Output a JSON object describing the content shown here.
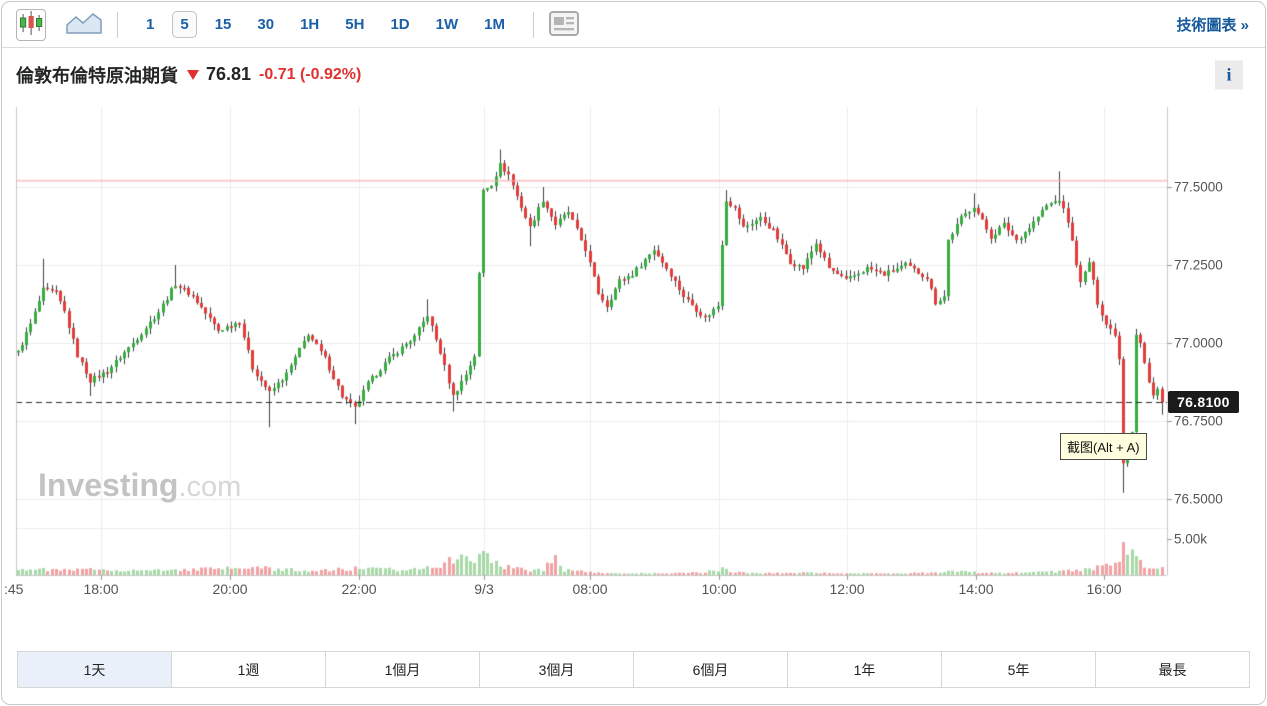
{
  "toolbar": {
    "chart_types": [
      {
        "name": "candlestick",
        "selected": true
      },
      {
        "name": "area",
        "selected": false
      }
    ],
    "intervals": [
      {
        "label": "1",
        "selected": false
      },
      {
        "label": "5",
        "selected": true
      },
      {
        "label": "15",
        "selected": false
      },
      {
        "label": "30",
        "selected": false
      },
      {
        "label": "1H",
        "selected": false
      },
      {
        "label": "5H",
        "selected": false
      },
      {
        "label": "1D",
        "selected": false
      },
      {
        "label": "1W",
        "selected": false
      },
      {
        "label": "1M",
        "selected": false
      }
    ],
    "technical_link": "技術圖表 »"
  },
  "header": {
    "title": "倫敦布倫特原油期貨",
    "price": "76.81",
    "change": "-0.71 (-0.92%)",
    "direction": "down",
    "info_label": "i"
  },
  "chart": {
    "y_axis_labels": [
      "77.5000",
      "77.2500",
      "77.0000",
      "76.7500",
      "76.5000"
    ],
    "volume_axis_label": "5.00k",
    "last_price_label": "76.8100",
    "x_axis_labels": [
      ":45",
      "18:00",
      "20:00",
      "22:00",
      "9/3",
      "08:00",
      "10:00",
      "12:00",
      "14:00",
      "16:00"
    ],
    "watermark_bold": "Investing",
    "watermark_light": ".com",
    "tooltip": "截图(Alt + A)"
  },
  "periods": [
    {
      "label": "1天",
      "selected": true
    },
    {
      "label": "1週",
      "selected": false
    },
    {
      "label": "1個月",
      "selected": false
    },
    {
      "label": "3個月",
      "selected": false
    },
    {
      "label": "6個月",
      "selected": false
    },
    {
      "label": "1年",
      "selected": false
    },
    {
      "label": "5年",
      "selected": false
    },
    {
      "label": "最長",
      "selected": false
    }
  ],
  "chart_data": {
    "type": "candlestick",
    "instrument": "倫敦布倫特原油期貨",
    "timeframe_minutes": 5,
    "last_price": 76.81,
    "change": -0.71,
    "change_pct": -0.92,
    "prev_close_line": 77.52,
    "ylim": [
      76.38,
      77.68
    ],
    "y_ticks": [
      77.5,
      77.25,
      77.0,
      76.75,
      76.5
    ],
    "x_tick_labels": [
      ":45",
      "18:00",
      "20:00",
      "22:00",
      "9/3",
      "08:00",
      "10:00",
      "12:00",
      "14:00",
      "16:00"
    ],
    "volume_tick": 5000,
    "num_candles": 269,
    "price_path": [
      [
        0,
        76.97
      ],
      [
        3,
        77.06
      ],
      [
        6,
        77.17
      ],
      [
        9,
        77.16
      ],
      [
        11,
        77.1
      ],
      [
        14,
        76.96
      ],
      [
        17,
        76.88
      ],
      [
        21,
        76.91
      ],
      [
        27,
        77.0
      ],
      [
        33,
        77.1
      ],
      [
        37,
        77.19
      ],
      [
        41,
        77.15
      ],
      [
        47,
        77.04
      ],
      [
        52,
        77.07
      ],
      [
        55,
        76.92
      ],
      [
        59,
        76.84
      ],
      [
        63,
        76.9
      ],
      [
        68,
        77.03
      ],
      [
        72,
        76.95
      ],
      [
        76,
        76.83
      ],
      [
        79,
        76.79
      ],
      [
        82,
        76.87
      ],
      [
        87,
        76.95
      ],
      [
        93,
        77.02
      ],
      [
        96,
        77.09
      ],
      [
        99,
        76.97
      ],
      [
        102,
        76.83
      ],
      [
        105,
        76.9
      ],
      [
        107,
        76.96
      ],
      [
        108,
        77.22
      ],
      [
        109,
        77.49
      ],
      [
        111,
        77.51
      ],
      [
        113,
        77.57
      ],
      [
        115,
        77.54
      ],
      [
        117,
        77.47
      ],
      [
        120,
        77.37
      ],
      [
        123,
        77.46
      ],
      [
        126,
        77.38
      ],
      [
        129,
        77.42
      ],
      [
        133,
        77.3
      ],
      [
        136,
        77.16
      ],
      [
        138,
        77.12
      ],
      [
        141,
        77.2
      ],
      [
        144,
        77.22
      ],
      [
        149,
        77.3
      ],
      [
        153,
        77.22
      ],
      [
        156,
        77.15
      ],
      [
        161,
        77.08
      ],
      [
        164,
        77.12
      ],
      [
        165,
        77.32
      ],
      [
        166,
        77.46
      ],
      [
        168,
        77.43
      ],
      [
        170,
        77.37
      ],
      [
        174,
        77.4
      ],
      [
        177,
        77.36
      ],
      [
        181,
        77.26
      ],
      [
        184,
        77.24
      ],
      [
        187,
        77.32
      ],
      [
        190,
        77.24
      ],
      [
        194,
        77.2
      ],
      [
        199,
        77.24
      ],
      [
        203,
        77.22
      ],
      [
        208,
        77.25
      ],
      [
        213,
        77.21
      ],
      [
        215,
        77.13
      ],
      [
        217,
        77.15
      ],
      [
        218,
        77.33
      ],
      [
        221,
        77.4
      ],
      [
        224,
        77.44
      ],
      [
        228,
        77.34
      ],
      [
        231,
        77.38
      ],
      [
        234,
        77.33
      ],
      [
        237,
        77.37
      ],
      [
        241,
        77.44
      ],
      [
        244,
        77.46
      ],
      [
        246,
        77.39
      ],
      [
        249,
        77.19
      ],
      [
        251,
        77.26
      ],
      [
        253,
        77.13
      ],
      [
        255,
        77.06
      ],
      [
        257,
        77.03
      ],
      [
        258,
        76.95
      ],
      [
        259,
        76.62
      ],
      [
        260,
        76.67
      ],
      [
        261,
        76.72
      ],
      [
        262,
        77.03
      ],
      [
        263,
        77.0
      ],
      [
        265,
        76.87
      ],
      [
        266,
        76.83
      ],
      [
        267,
        76.86
      ],
      [
        268,
        76.81
      ]
    ],
    "wick_high": {
      "6": 77.27,
      "37": 77.25,
      "96": 77.14,
      "113": 77.62,
      "123": 77.5,
      "166": 77.49,
      "224": 77.48,
      "244": 77.55
    },
    "wick_low": {
      "17": 76.83,
      "59": 76.73,
      "79": 76.74,
      "102": 76.78,
      "120": 77.31,
      "259": 76.52,
      "268": 76.77
    },
    "volume_profile": [
      [
        0,
        900
      ],
      [
        10,
        650
      ],
      [
        20,
        800
      ],
      [
        30,
        600
      ],
      [
        40,
        750
      ],
      [
        50,
        900
      ],
      [
        55,
        1100
      ],
      [
        60,
        800
      ],
      [
        70,
        600
      ],
      [
        80,
        900
      ],
      [
        90,
        700
      ],
      [
        100,
        1600
      ],
      [
        104,
        2600
      ],
      [
        107,
        1500
      ],
      [
        109,
        4700
      ],
      [
        111,
        2000
      ],
      [
        113,
        1400
      ],
      [
        116,
        900
      ],
      [
        120,
        700
      ],
      [
        123,
        800
      ],
      [
        126,
        2500
      ],
      [
        128,
        700
      ],
      [
        133,
        500
      ],
      [
        137,
        200
      ],
      [
        145,
        250
      ],
      [
        152,
        200
      ],
      [
        160,
        350
      ],
      [
        165,
        800
      ],
      [
        168,
        400
      ],
      [
        175,
        250
      ],
      [
        185,
        300
      ],
      [
        195,
        200
      ],
      [
        205,
        250
      ],
      [
        213,
        300
      ],
      [
        218,
        500
      ],
      [
        225,
        350
      ],
      [
        235,
        300
      ],
      [
        241,
        400
      ],
      [
        246,
        600
      ],
      [
        250,
        800
      ],
      [
        255,
        1200
      ],
      [
        258,
        2000
      ],
      [
        259,
        4300
      ],
      [
        260,
        3600
      ],
      [
        262,
        2800
      ],
      [
        264,
        1500
      ],
      [
        266,
        900
      ],
      [
        268,
        1100
      ]
    ],
    "colors": {
      "up": "#35ad3f",
      "down": "#e23b3b",
      "wick": "#3c4043",
      "volume_up": "rgba(96,186,96,0.55)",
      "volume_down": "rgba(229,86,86,0.55)",
      "grid": "#ececec",
      "prev_close": "#f5a8a8",
      "dashed": "#2b2b2b",
      "badge_bg": "#1b1b1b",
      "accent_blue": "#1a5fa8",
      "change_red": "#e03131"
    }
  }
}
